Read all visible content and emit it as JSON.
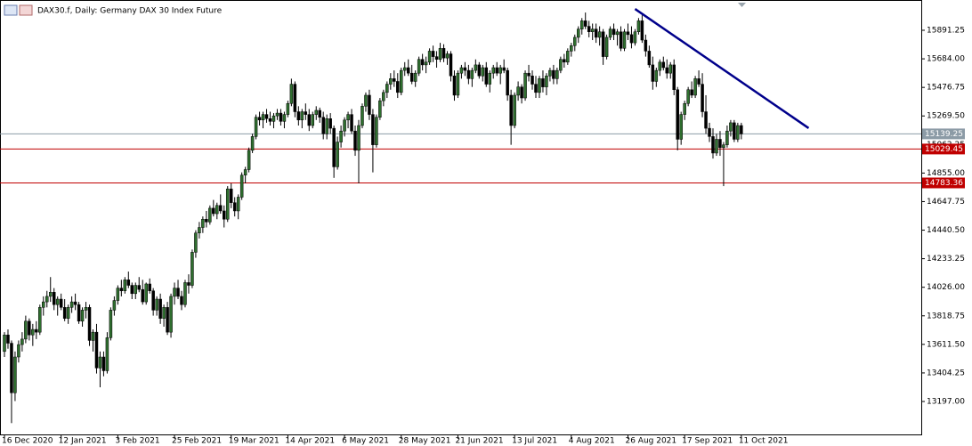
{
  "chart_data": {
    "type": "candlestick",
    "title": "DAX30.f, Daily:  Germany DAX 30 Index Future",
    "categories": [
      "16 Dec 2020",
      null,
      null,
      null,
      null,
      null,
      null,
      null,
      null,
      null,
      null,
      null,
      null,
      null,
      null,
      null,
      "12 Jan 2021",
      null,
      null,
      null,
      null,
      null,
      null,
      null,
      null,
      null,
      null,
      null,
      null,
      null,
      null,
      null,
      "3 Feb 2021",
      null,
      null,
      null,
      null,
      null,
      null,
      null,
      null,
      null,
      null,
      null,
      null,
      null,
      null,
      null,
      "25 Feb 2021",
      null,
      null,
      null,
      null,
      null,
      null,
      null,
      null,
      null,
      null,
      null,
      null,
      null,
      null,
      null,
      "19 Mar 2021",
      null,
      null,
      null,
      null,
      null,
      null,
      null,
      null,
      null,
      null,
      null,
      null,
      null,
      null,
      null,
      "14 Apr 2021",
      null,
      null,
      null,
      null,
      null,
      null,
      null,
      null,
      null,
      null,
      null,
      null,
      null,
      null,
      null,
      "6 May 2021",
      null,
      null,
      null,
      null,
      null,
      null,
      null,
      null,
      null,
      null,
      null,
      null,
      null,
      null,
      null,
      "28 May 2021",
      null,
      null,
      null,
      null,
      null,
      null,
      null,
      null,
      null,
      null,
      null,
      null,
      null,
      null,
      null,
      "21 Jun 2021",
      null,
      null,
      null,
      null,
      null,
      null,
      null,
      null,
      null,
      null,
      null,
      null,
      null,
      null,
      null,
      "13 Jul 2021",
      null,
      null,
      null,
      null,
      null,
      null,
      null,
      null,
      null,
      null,
      null,
      null,
      null,
      null,
      null,
      "4 Aug 2021",
      null,
      null,
      null,
      null,
      null,
      null,
      null,
      null,
      null,
      null,
      null,
      null,
      null,
      null,
      null,
      "26 Aug 2021",
      null,
      null,
      null,
      null,
      null,
      null,
      null,
      null,
      null,
      null,
      null,
      null,
      null,
      null,
      null,
      "17 Sep 2021",
      null,
      null,
      null,
      null,
      null,
      null,
      null,
      null,
      null,
      null,
      null,
      null,
      null,
      null,
      null,
      "11 Oct 2021"
    ],
    "candles": [
      [
        13560,
        13700,
        13520,
        13680
      ],
      [
        13680,
        13720,
        13580,
        13620
      ],
      [
        13620,
        13640,
        13040,
        13260
      ],
      [
        13260,
        13560,
        13200,
        13520
      ],
      [
        13520,
        13640,
        13480,
        13610
      ],
      [
        13610,
        13700,
        13560,
        13650
      ],
      [
        13650,
        13820,
        13620,
        13780
      ],
      [
        13780,
        13800,
        13640,
        13680
      ],
      [
        13680,
        13760,
        13600,
        13720
      ],
      [
        13720,
        13780,
        13650,
        13700
      ],
      [
        13700,
        13900,
        13680,
        13880
      ],
      [
        13880,
        13960,
        13820,
        13920
      ],
      [
        13920,
        14000,
        13880,
        13960
      ],
      [
        13960,
        14100,
        13920,
        13990
      ],
      [
        13990,
        14020,
        13860,
        13900
      ],
      [
        13900,
        13960,
        13820,
        13940
      ],
      [
        13940,
        13980,
        13860,
        13880
      ],
      [
        13880,
        13940,
        13780,
        13800
      ],
      [
        13800,
        13900,
        13760,
        13880
      ],
      [
        13880,
        13960,
        13840,
        13920
      ],
      [
        13920,
        13980,
        13860,
        13900
      ],
      [
        13900,
        13920,
        13760,
        13780
      ],
      [
        13780,
        13880,
        13740,
        13860
      ],
      [
        13860,
        13920,
        13800,
        13880
      ],
      [
        13880,
        13900,
        13600,
        13640
      ],
      [
        13640,
        13720,
        13560,
        13700
      ],
      [
        13700,
        13760,
        13400,
        13440
      ],
      [
        13440,
        13560,
        13300,
        13520
      ],
      [
        13520,
        13560,
        13380,
        13420
      ],
      [
        13420,
        13700,
        13400,
        13660
      ],
      [
        13660,
        13880,
        13640,
        13860
      ],
      [
        13860,
        13960,
        13820,
        13930
      ],
      [
        13930,
        14040,
        13900,
        14020
      ],
      [
        14020,
        14080,
        13960,
        14000
      ],
      [
        14000,
        14100,
        13980,
        14080
      ],
      [
        14080,
        14140,
        14020,
        14040
      ],
      [
        14040,
        14060,
        13940,
        13980
      ],
      [
        13980,
        14060,
        13940,
        14040
      ],
      [
        14040,
        14100,
        13990,
        14010
      ],
      [
        14010,
        14080,
        13900,
        13920
      ],
      [
        13920,
        14060,
        13900,
        14050
      ],
      [
        14050,
        14090,
        13980,
        14000
      ],
      [
        14000,
        14020,
        13820,
        13860
      ],
      [
        13860,
        13960,
        13820,
        13940
      ],
      [
        13940,
        13980,
        13760,
        13800
      ],
      [
        13800,
        13900,
        13740,
        13880
      ],
      [
        13880,
        13920,
        13680,
        13700
      ],
      [
        13700,
        13980,
        13660,
        13960
      ],
      [
        13960,
        14060,
        13900,
        14020
      ],
      [
        14020,
        14080,
        13940,
        13960
      ],
      [
        13960,
        14000,
        13860,
        13900
      ],
      [
        13900,
        14080,
        13880,
        14060
      ],
      [
        14060,
        14120,
        13980,
        14040
      ],
      [
        14040,
        14300,
        14020,
        14280
      ],
      [
        14280,
        14440,
        14240,
        14420
      ],
      [
        14420,
        14500,
        14380,
        14460
      ],
      [
        14460,
        14540,
        14420,
        14520
      ],
      [
        14520,
        14580,
        14460,
        14500
      ],
      [
        14500,
        14620,
        14480,
        14600
      ],
      [
        14600,
        14660,
        14540,
        14560
      ],
      [
        14560,
        14640,
        14520,
        14620
      ],
      [
        14620,
        14700,
        14560,
        14580
      ],
      [
        14580,
        14620,
        14460,
        14520
      ],
      [
        14520,
        14760,
        14500,
        14740
      ],
      [
        14740,
        14780,
        14600,
        14640
      ],
      [
        14640,
        14680,
        14540,
        14580
      ],
      [
        14580,
        14700,
        14520,
        14680
      ],
      [
        14680,
        14860,
        14660,
        14840
      ],
      [
        14840,
        14900,
        14780,
        14880
      ],
      [
        14880,
        15040,
        14860,
        15020
      ],
      [
        15020,
        15140,
        15000,
        15120
      ],
      [
        15120,
        15280,
        15100,
        15260
      ],
      [
        15260,
        15300,
        15200,
        15240
      ],
      [
        15240,
        15300,
        15180,
        15280
      ],
      [
        15280,
        15320,
        15220,
        15250
      ],
      [
        15250,
        15300,
        15200,
        15230
      ],
      [
        15230,
        15290,
        15180,
        15270
      ],
      [
        15270,
        15320,
        15240,
        15290
      ],
      [
        15290,
        15320,
        15200,
        15230
      ],
      [
        15230,
        15300,
        15180,
        15280
      ],
      [
        15280,
        15380,
        15260,
        15360
      ],
      [
        15360,
        15540,
        15340,
        15500
      ],
      [
        15500,
        15520,
        15260,
        15300
      ],
      [
        15300,
        15340,
        15200,
        15240
      ],
      [
        15240,
        15320,
        15180,
        15300
      ],
      [
        15300,
        15360,
        15240,
        15280
      ],
      [
        15280,
        15320,
        15160,
        15200
      ],
      [
        15200,
        15300,
        15180,
        15280
      ],
      [
        15280,
        15340,
        15240,
        15310
      ],
      [
        15310,
        15330,
        15220,
        15260
      ],
      [
        15260,
        15300,
        15100,
        15140
      ],
      [
        15140,
        15280,
        15100,
        15250
      ],
      [
        15250,
        15290,
        15140,
        15180
      ],
      [
        15180,
        15200,
        14820,
        14900
      ],
      [
        14900,
        15120,
        14880,
        15080
      ],
      [
        15080,
        15200,
        15040,
        15160
      ],
      [
        15160,
        15260,
        15120,
        15240
      ],
      [
        15240,
        15300,
        15180,
        15280
      ],
      [
        15280,
        15320,
        15140,
        15160
      ],
      [
        15160,
        15200,
        14980,
        15020
      ],
      [
        15020,
        15240,
        14780,
        15200
      ],
      [
        15200,
        15360,
        15180,
        15340
      ],
      [
        15340,
        15440,
        15300,
        15420
      ],
      [
        15420,
        15460,
        15240,
        15280
      ],
      [
        15280,
        15320,
        14860,
        15060
      ],
      [
        15060,
        15280,
        15040,
        15260
      ],
      [
        15260,
        15400,
        15240,
        15380
      ],
      [
        15380,
        15460,
        15340,
        15440
      ],
      [
        15440,
        15520,
        15400,
        15500
      ],
      [
        15500,
        15580,
        15460,
        15540
      ],
      [
        15540,
        15600,
        15480,
        15520
      ],
      [
        15520,
        15580,
        15400,
        15440
      ],
      [
        15440,
        15620,
        15420,
        15600
      ],
      [
        15600,
        15660,
        15560,
        15620
      ],
      [
        15620,
        15680,
        15560,
        15580
      ],
      [
        15580,
        15640,
        15500,
        15520
      ],
      [
        15520,
        15600,
        15480,
        15580
      ],
      [
        15580,
        15700,
        15560,
        15680
      ],
      [
        15680,
        15720,
        15600,
        15640
      ],
      [
        15640,
        15700,
        15580,
        15660
      ],
      [
        15660,
        15760,
        15640,
        15740
      ],
      [
        15740,
        15780,
        15660,
        15700
      ],
      [
        15700,
        15740,
        15620,
        15680
      ],
      [
        15680,
        15800,
        15660,
        15760
      ],
      [
        15760,
        15790,
        15660,
        15690
      ],
      [
        15690,
        15740,
        15640,
        15720
      ],
      [
        15720,
        15740,
        15520,
        15560
      ],
      [
        15560,
        15600,
        15380,
        15420
      ],
      [
        15420,
        15600,
        15400,
        15580
      ],
      [
        15580,
        15640,
        15540,
        15620
      ],
      [
        15620,
        15660,
        15560,
        15600
      ],
      [
        15600,
        15640,
        15500,
        15540
      ],
      [
        15540,
        15620,
        15480,
        15600
      ],
      [
        15600,
        15680,
        15580,
        15640
      ],
      [
        15640,
        15660,
        15540,
        15560
      ],
      [
        15560,
        15640,
        15520,
        15620
      ],
      [
        15620,
        15660,
        15480,
        15500
      ],
      [
        15500,
        15600,
        15440,
        15580
      ],
      [
        15580,
        15640,
        15540,
        15620
      ],
      [
        15620,
        15660,
        15560,
        15580
      ],
      [
        15580,
        15640,
        15500,
        15620
      ],
      [
        15620,
        15680,
        15580,
        15600
      ],
      [
        15600,
        15620,
        15380,
        15420
      ],
      [
        15420,
        15460,
        15060,
        15200
      ],
      [
        15200,
        15440,
        15180,
        15420
      ],
      [
        15420,
        15520,
        15380,
        15480
      ],
      [
        15480,
        15500,
        15360,
        15400
      ],
      [
        15400,
        15600,
        15380,
        15580
      ],
      [
        15580,
        15640,
        15520,
        15560
      ],
      [
        15560,
        15600,
        15460,
        15500
      ],
      [
        15500,
        15560,
        15400,
        15440
      ],
      [
        15440,
        15560,
        15400,
        15540
      ],
      [
        15540,
        15600,
        15440,
        15480
      ],
      [
        15480,
        15580,
        15420,
        15560
      ],
      [
        15560,
        15620,
        15520,
        15600
      ],
      [
        15600,
        15640,
        15500,
        15540
      ],
      [
        15540,
        15620,
        15500,
        15600
      ],
      [
        15600,
        15700,
        15580,
        15680
      ],
      [
        15680,
        15720,
        15620,
        15660
      ],
      [
        15660,
        15760,
        15640,
        15740
      ],
      [
        15740,
        15800,
        15700,
        15780
      ],
      [
        15780,
        15860,
        15740,
        15840
      ],
      [
        15840,
        15920,
        15800,
        15900
      ],
      [
        15900,
        15980,
        15860,
        15960
      ],
      [
        15960,
        16020,
        15900,
        15920
      ],
      [
        15920,
        15960,
        15840,
        15880
      ],
      [
        15880,
        15940,
        15820,
        15900
      ],
      [
        15900,
        15940,
        15800,
        15840
      ],
      [
        15840,
        15920,
        15780,
        15880
      ],
      [
        15880,
        15900,
        15640,
        15700
      ],
      [
        15700,
        15860,
        15680,
        15840
      ],
      [
        15840,
        15920,
        15820,
        15900
      ],
      [
        15900,
        15940,
        15820,
        15860
      ],
      [
        15860,
        15900,
        15780,
        15880
      ],
      [
        15880,
        15920,
        15740,
        15760
      ],
      [
        15760,
        15900,
        15740,
        15880
      ],
      [
        15880,
        15940,
        15820,
        15860
      ],
      [
        15860,
        15920,
        15760,
        15800
      ],
      [
        15800,
        15900,
        15780,
        15880
      ],
      [
        15880,
        15980,
        15860,
        15960
      ],
      [
        15960,
        16000,
        15800,
        15820
      ],
      [
        15820,
        15860,
        15700,
        15740
      ],
      [
        15740,
        15780,
        15620,
        15640
      ],
      [
        15640,
        15700,
        15460,
        15520
      ],
      [
        15520,
        15620,
        15480,
        15600
      ],
      [
        15600,
        15680,
        15560,
        15660
      ],
      [
        15660,
        15700,
        15600,
        15620
      ],
      [
        15620,
        15680,
        15540,
        15580
      ],
      [
        15580,
        15660,
        15540,
        15640
      ],
      [
        15640,
        15680,
        15420,
        15460
      ],
      [
        15460,
        15480,
        15020,
        15100
      ],
      [
        15100,
        15300,
        15060,
        15280
      ],
      [
        15280,
        15380,
        15240,
        15360
      ],
      [
        15360,
        15480,
        15340,
        15460
      ],
      [
        15460,
        15520,
        15400,
        15420
      ],
      [
        15420,
        15560,
        15400,
        15540
      ],
      [
        15540,
        15600,
        15480,
        15500
      ],
      [
        15500,
        15580,
        15260,
        15300
      ],
      [
        15300,
        15420,
        15140,
        15180
      ],
      [
        15180,
        15220,
        15080,
        15120
      ],
      [
        15120,
        15180,
        14960,
        15000
      ],
      [
        15000,
        15140,
        14980,
        15100
      ],
      [
        15100,
        15160,
        14980,
        15040
      ],
      [
        15040,
        15080,
        14760,
        15060
      ],
      [
        15060,
        15200,
        15040,
        15160
      ],
      [
        15160,
        15240,
        15120,
        15220
      ],
      [
        15220,
        15240,
        15080,
        15100
      ],
      [
        15100,
        15220,
        15080,
        15200
      ],
      [
        15200,
        15220,
        15100,
        15139.25
      ]
    ],
    "up_color": "#2f6f2f",
    "down_color": "#000000",
    "ylim": [
      12945,
      16111
    ],
    "yticks": [
      {
        "value": 13197,
        "label": "13197.00"
      },
      13404.25,
      {
        "value": 13611.5,
        "label": "13611.50"
      },
      13818.75,
      {
        "value": 14026,
        "label": "14026.00"
      },
      14233.25,
      {
        "value": 14440.5,
        "label": "14440.50"
      },
      14647.75,
      {
        "value": 14855,
        "label": "14855.00"
      },
      15062.25,
      {
        "value": 15269.5,
        "label": "15269.50"
      },
      15476.75,
      {
        "value": 15684,
        "label": "15684.00"
      },
      15891.25
    ],
    "price_lines": [
      {
        "value": 15139.25,
        "color": "#8c9ba6"
      },
      {
        "value": 15029.45,
        "color": "#c00000"
      },
      {
        "value": 14783.36,
        "color": "#c00000"
      }
    ],
    "trend_line": {
      "color": "#00008b",
      "points": [
        [
          178,
          16046
        ],
        [
          227,
          15181
        ]
      ]
    }
  }
}
